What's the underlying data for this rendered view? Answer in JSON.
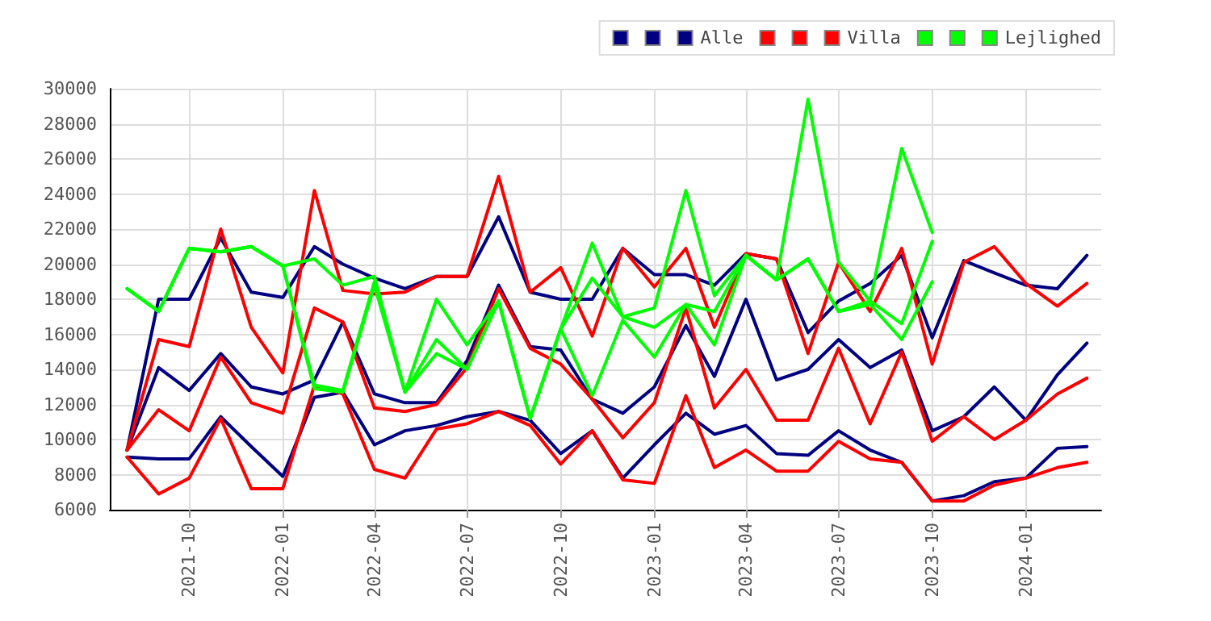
{
  "chart_data": {
    "type": "line",
    "x": [
      "2021-08",
      "2021-09",
      "2021-10",
      "2021-11",
      "2021-12",
      "2022-01",
      "2022-02",
      "2022-03",
      "2022-04",
      "2022-05",
      "2022-06",
      "2022-07",
      "2022-08",
      "2022-09",
      "2022-10",
      "2022-11",
      "2022-12",
      "2023-01",
      "2023-02",
      "2023-03",
      "2023-04",
      "2023-05",
      "2023-06",
      "2023-07",
      "2023-08",
      "2023-09",
      "2023-10",
      "2023-11",
      "2023-12",
      "2024-01",
      "2024-02",
      "2024-03"
    ],
    "series": [
      {
        "color": "#000080",
        "values": [
          9400,
          18000,
          18000,
          21500,
          18400,
          18100,
          21000,
          20000,
          19200,
          18600,
          19300,
          19300,
          22700,
          18400,
          18000,
          18000,
          20900,
          19400,
          19400,
          18800,
          20600,
          20300,
          16100,
          17900,
          18900,
          20500,
          15800,
          20200,
          19500,
          18800,
          18600,
          20500
        ]
      },
      {
        "color": "#000080",
        "values": [
          9400,
          14100,
          12800,
          14900,
          13000,
          12600,
          13400,
          16700,
          12600,
          12100,
          12100,
          14500,
          18800,
          15300,
          15100,
          12300,
          11500,
          13000,
          16500,
          13600,
          18000,
          13400,
          14000,
          15700,
          14100,
          15100,
          10500,
          11300,
          13000,
          11100,
          13700,
          15500
        ]
      },
      {
        "name": "Alle",
        "color": "#000080",
        "values": [
          9000,
          8900,
          8900,
          11300,
          9600,
          7900,
          12400,
          12700,
          9700,
          10500,
          10800,
          11300,
          11600,
          11100,
          9200,
          10500,
          7800,
          9700,
          11500,
          10300,
          10800,
          9200,
          9100,
          10500,
          9400,
          8700,
          6500,
          6800,
          7600,
          7800,
          9500,
          9600
        ]
      },
      {
        "color": "#ff0000",
        "values": [
          9400,
          15700,
          15300,
          22000,
          16400,
          13800,
          24200,
          18500,
          18300,
          18400,
          19300,
          19300,
          25000,
          18400,
          19800,
          15900,
          20900,
          18700,
          20900,
          16400,
          20600,
          20300,
          14900,
          20100,
          17300,
          20900,
          14300,
          20100,
          21000,
          18900,
          17600,
          18900
        ]
      },
      {
        "color": "#ff0000",
        "values": [
          9400,
          11700,
          10500,
          14700,
          12100,
          11500,
          17500,
          16700,
          11800,
          11600,
          12000,
          14100,
          18600,
          15200,
          14300,
          12300,
          10100,
          12100,
          17500,
          11800,
          14000,
          11100,
          11100,
          15200,
          10900,
          15000,
          9900,
          11300,
          10000,
          11100,
          12600,
          13500
        ]
      },
      {
        "name": "Villa",
        "color": "#ff0000",
        "values": [
          9000,
          6900,
          7800,
          11200,
          7200,
          7200,
          13100,
          12600,
          8300,
          7800,
          10600,
          10900,
          11600,
          10800,
          8600,
          10500,
          7700,
          7500,
          12500,
          8400,
          9400,
          8200,
          8200,
          9900,
          8900,
          8700,
          6500,
          6500,
          7400,
          7800,
          8400,
          8700
        ]
      },
      {
        "color": "#00ff00",
        "values": [
          18600,
          17300,
          20900,
          20700,
          21000,
          19900,
          20300,
          18800,
          19300,
          12700,
          18000,
          15400,
          17900,
          11200,
          16300,
          21200,
          17000,
          17500,
          24200,
          18200,
          20500,
          19100,
          29400,
          20100,
          17900,
          26600,
          21800,
          null,
          null,
          null,
          null,
          null
        ]
      },
      {
        "color": "#00ff00",
        "values": [
          18600,
          17300,
          20900,
          20700,
          21000,
          19900,
          13100,
          12800,
          19000,
          12700,
          15700,
          14000,
          17900,
          11200,
          16300,
          19200,
          17000,
          16400,
          17700,
          17300,
          20500,
          19100,
          20300,
          17300,
          17900,
          16600,
          21300,
          null,
          null,
          null,
          null,
          null
        ]
      },
      {
        "name": "Lejlighed",
        "color": "#00ff00",
        "values": [
          18600,
          17300,
          20900,
          20700,
          21000,
          19900,
          12900,
          12700,
          18800,
          12700,
          14900,
          14000,
          17900,
          11200,
          16300,
          12500,
          16800,
          14700,
          17700,
          15400,
          20500,
          19100,
          20300,
          17300,
          17700,
          15700,
          19000,
          null,
          null,
          null,
          null,
          null
        ]
      }
    ],
    "xlim": [
      "2021-07-15",
      "2024-03-15"
    ],
    "xticks": [
      {
        "value": "2021-10",
        "label": "2021-10"
      },
      {
        "value": "2022-01",
        "label": "2022-01"
      },
      {
        "value": "2022-04",
        "label": "2022-04"
      },
      {
        "value": "2022-07",
        "label": "2022-07"
      },
      {
        "value": "2022-10",
        "label": "2022-10"
      },
      {
        "value": "2023-01",
        "label": "2023-01"
      },
      {
        "value": "2023-04",
        "label": "2023-04"
      },
      {
        "value": "2023-07",
        "label": "2023-07"
      },
      {
        "value": "2023-10",
        "label": "2023-10"
      },
      {
        "value": "2024-01",
        "label": "2024-01"
      }
    ],
    "ylim": [
      6000,
      30000
    ],
    "yticks": [
      6000,
      8000,
      10000,
      12000,
      14000,
      16000,
      18000,
      20000,
      22000,
      24000,
      26000,
      28000,
      30000
    ],
    "grid": true,
    "legend": "top right",
    "marker": "none",
    "line_style": "solid"
  }
}
